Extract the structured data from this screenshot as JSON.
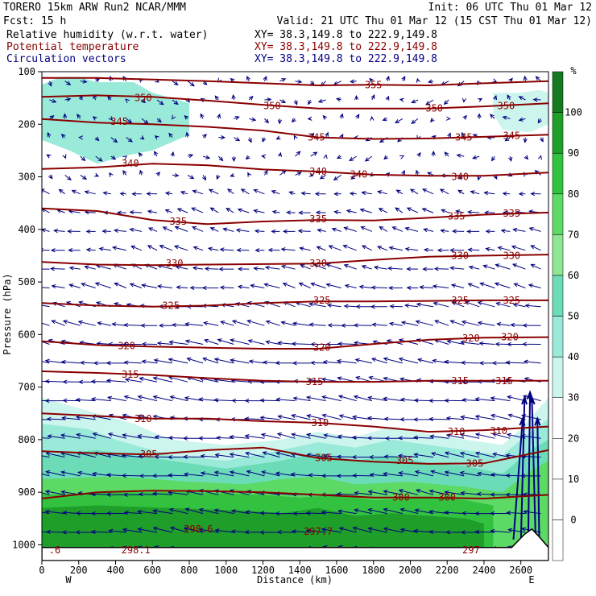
{
  "header": {
    "line1_left": "TORERO  15km ARW   Run2    NCAR/MMM",
    "line1_right": "Init: 06 UTC Thu 01 Mar 12",
    "line2_left": "Fcst:   15 h",
    "line2_right": "Valid: 21 UTC Thu 01 Mar 12 (15 CST Thu 01 Mar 12)",
    "fields": [
      {
        "label": "Relative humidity (w.r.t. water)",
        "xy": "XY=  38.3,149.8 to 222.9,149.8",
        "color": "#000000"
      },
      {
        "label": "Potential temperature",
        "xy": "XY=  38.3,149.8 to 222.9,149.8",
        "color": "#8b0000"
      },
      {
        "label": "Circulation vectors",
        "xy": "XY=  38.3,149.8 to 222.9,149.8",
        "color": "#000080"
      }
    ]
  },
  "colors": {
    "theta_contour": "#8b0000",
    "vectors": "#000080",
    "terrain": "#000000"
  },
  "chart_data": {
    "type": "heatmap",
    "title": "",
    "xlabel": "Distance (km)",
    "ylabel": "Pressure (hPa)",
    "x_end_left": "W",
    "x_end_right": "E",
    "xlim": [
      0,
      2750
    ],
    "ylim": [
      1030,
      100
    ],
    "y_axis_direction": "pressure decreasing upward",
    "x_ticks": [
      "0",
      "200",
      "400",
      "600",
      "800",
      "1000",
      "1200",
      "1400",
      "1600",
      "1800",
      "2000",
      "2200",
      "2400",
      "2600"
    ],
    "x_tick_values": [
      0,
      200,
      400,
      600,
      800,
      1000,
      1200,
      1400,
      1600,
      1800,
      2000,
      2200,
      2400,
      2600
    ],
    "y_ticks": [
      "100",
      "200",
      "300",
      "400",
      "500",
      "600",
      "700",
      "800",
      "900",
      "1000"
    ],
    "y_tick_values": [
      100,
      200,
      300,
      400,
      500,
      600,
      700,
      800,
      900,
      1000
    ],
    "colorbar": {
      "unit": "%",
      "tick_labels": [
        "0",
        "10",
        "20",
        "30",
        "40",
        "50",
        "60",
        "70",
        "80",
        "90",
        "100"
      ],
      "boundaries": [
        -10,
        0,
        10,
        20,
        30,
        40,
        50,
        60,
        70,
        80,
        90,
        100,
        110
      ],
      "colors": [
        "#ffffff",
        "#ffffff",
        "#ffffff",
        "#ffffff",
        "#ccf5ee",
        "#99ead9",
        "#6cdcb8",
        "#8fe693",
        "#5dd966",
        "#33c240",
        "#1f9e2a",
        "#157a1f"
      ]
    },
    "rh_regions": [
      {
        "rh": 45,
        "x": [
          0,
          100,
          200,
          300,
          500,
          600,
          800,
          800,
          600,
          450,
          300,
          150,
          0
        ],
        "p": [
          125,
          110,
          110,
          120,
          120,
          140,
          160,
          220,
          250,
          260,
          275,
          250,
          230
        ]
      },
      {
        "rh": 35,
        "x": [
          2450,
          2600,
          2700,
          2750,
          2750,
          2650,
          2500,
          2450
        ],
        "p": [
          140,
          140,
          135,
          140,
          200,
          215,
          210,
          180
        ]
      },
      {
        "rh": 35,
        "x": [
          0,
          200,
          400,
          500,
          700,
          1000,
          1300,
          1500,
          1700,
          1900,
          2100,
          2300,
          2500,
          2600,
          2750,
          2750,
          0
        ],
        "p": [
          720,
          740,
          760,
          770,
          800,
          810,
          800,
          785,
          795,
          775,
          790,
          800,
          810,
          780,
          720,
          1005,
          1005
        ]
      },
      {
        "rh": 45,
        "x": [
          0,
          250,
          400,
          700,
          1000,
          1300,
          1500,
          1700,
          1900,
          2100,
          2300,
          2500,
          2600,
          2750,
          2750,
          0
        ],
        "p": [
          770,
          780,
          800,
          830,
          840,
          820,
          805,
          815,
          800,
          810,
          820,
          830,
          800,
          760,
          1005,
          1005
        ]
      },
      {
        "rh": 55,
        "x": [
          0,
          300,
          700,
          1000,
          1300,
          1500,
          1700,
          1900,
          2100,
          2300,
          2500,
          2650,
          2750,
          2750,
          0
        ],
        "p": [
          830,
          820,
          840,
          855,
          840,
          825,
          840,
          830,
          845,
          850,
          865,
          820,
          800,
          1005,
          1005
        ]
      },
      {
        "rh": 75,
        "x": [
          0,
          400,
          800,
          1100,
          1300,
          1500,
          1700,
          2000,
          2300,
          2500,
          2650,
          2750,
          2750,
          0
        ],
        "p": [
          875,
          870,
          880,
          885,
          875,
          870,
          885,
          880,
          890,
          900,
          860,
          840,
          1005,
          1005
        ]
      },
      {
        "rh": 85,
        "x": [
          0,
          400,
          800,
          1200,
          1400,
          1600,
          1800,
          2100,
          2300,
          2450,
          2450,
          0
        ],
        "p": [
          905,
          900,
          900,
          905,
          910,
          905,
          915,
          910,
          915,
          925,
          1005,
          1005
        ]
      },
      {
        "rh": 95,
        "x": [
          0,
          300,
          700,
          1100,
          1300,
          1500,
          1700,
          1900,
          2100,
          2300,
          2400,
          2400,
          0
        ],
        "p": [
          930,
          925,
          930,
          935,
          940,
          930,
          945,
          940,
          945,
          950,
          960,
          1005,
          1005
        ]
      }
    ],
    "theta_contours": [
      {
        "label": "355",
        "label_at": [
          [
            1800,
            125
          ]
        ],
        "x": [
          0,
          300,
          600,
          900,
          1200,
          1500,
          1800,
          2100,
          2400,
          2750
        ],
        "p": [
          112,
          112,
          115,
          118,
          122,
          126,
          125,
          126,
          122,
          118
        ]
      },
      {
        "label": "350",
        "label_at": [
          [
            550,
            150
          ],
          [
            1250,
            165
          ],
          [
            2130,
            170
          ],
          [
            2520,
            165
          ]
        ],
        "x": [
          0,
          300,
          600,
          900,
          1200,
          1500,
          1800,
          2100,
          2400,
          2750
        ],
        "p": [
          148,
          145,
          148,
          155,
          163,
          170,
          170,
          170,
          166,
          160
        ]
      },
      {
        "label": "345",
        "label_at": [
          [
            420,
            195
          ],
          [
            1490,
            225
          ],
          [
            2290,
            225
          ],
          [
            2550,
            222
          ]
        ],
        "x": [
          0,
          300,
          600,
          900,
          1200,
          1500,
          1800,
          2100,
          2400,
          2750
        ],
        "p": [
          190,
          197,
          200,
          205,
          212,
          225,
          228,
          227,
          224,
          220
        ]
      },
      {
        "label": "340",
        "label_at": [
          [
            480,
            275
          ],
          [
            1500,
            290
          ],
          [
            1720,
            295
          ],
          [
            2270,
            300
          ]
        ],
        "x": [
          0,
          300,
          600,
          900,
          1200,
          1500,
          1800,
          2100,
          2400,
          2750
        ],
        "p": [
          285,
          282,
          275,
          278,
          286,
          290,
          296,
          298,
          298,
          292
        ]
      },
      {
        "label": "335",
        "label_at": [
          [
            740,
            385
          ],
          [
            1500,
            380
          ],
          [
            2250,
            375
          ],
          [
            2550,
            370
          ]
        ],
        "x": [
          0,
          300,
          600,
          900,
          1200,
          1500,
          1800,
          2100,
          2400,
          2750
        ],
        "p": [
          360,
          365,
          382,
          390,
          385,
          382,
          383,
          378,
          372,
          368
        ]
      },
      {
        "label": "330",
        "label_at": [
          [
            720,
            465
          ],
          [
            1500,
            465
          ],
          [
            2270,
            450
          ],
          [
            2550,
            450
          ]
        ],
        "x": [
          0,
          300,
          600,
          900,
          1200,
          1500,
          1800,
          2100,
          2400,
          2750
        ],
        "p": [
          462,
          467,
          468,
          467,
          466,
          465,
          458,
          452,
          450,
          448
        ]
      },
      {
        "label": "325",
        "label_at": [
          [
            700,
            545
          ],
          [
            1520,
            535
          ],
          [
            2270,
            535
          ],
          [
            2550,
            535
          ]
        ],
        "x": [
          0,
          300,
          600,
          900,
          1200,
          1500,
          1800,
          2100,
          2400,
          2750
        ],
        "p": [
          540,
          545,
          547,
          545,
          540,
          537,
          537,
          536,
          535,
          535
        ]
      },
      {
        "label": "320",
        "label_at": [
          [
            460,
            622
          ],
          [
            1520,
            625
          ],
          [
            2330,
            607
          ],
          [
            2540,
            605
          ]
        ],
        "x": [
          0,
          300,
          600,
          900,
          1200,
          1500,
          1800,
          2100,
          2400,
          2750
        ],
        "p": [
          613,
          620,
          623,
          625,
          627,
          627,
          618,
          610,
          606,
          605
        ]
      },
      {
        "label": "315",
        "label_at": [
          [
            480,
            676
          ],
          [
            1480,
            690
          ],
          [
            2270,
            688
          ],
          [
            2510,
            688
          ]
        ],
        "x": [
          0,
          300,
          600,
          900,
          1200,
          1500,
          1800,
          2100,
          2400,
          2750
        ],
        "p": [
          670,
          673,
          677,
          683,
          688,
          690,
          690,
          688,
          688,
          688
        ]
      },
      {
        "label": "310",
        "label_at": [
          [
            550,
            760
          ],
          [
            1510,
            768
          ],
          [
            2250,
            785
          ],
          [
            2480,
            783
          ]
        ],
        "x": [
          0,
          300,
          600,
          900,
          1200,
          1500,
          1800,
          2100,
          2400,
          2750
        ],
        "p": [
          750,
          755,
          760,
          760,
          765,
          768,
          775,
          785,
          782,
          775
        ]
      },
      {
        "label": "305",
        "label_at": [
          [
            580,
            828
          ],
          [
            1530,
            835
          ],
          [
            1970,
            840
          ],
          [
            2350,
            845
          ]
        ],
        "x": [
          0,
          300,
          600,
          900,
          1200,
          1500,
          1800,
          2100,
          2400,
          2750
        ],
        "p": [
          822,
          826,
          828,
          820,
          815,
          835,
          842,
          846,
          845,
          820
        ]
      },
      {
        "label": "300",
        "label_at": [
          [
            1950,
            910
          ],
          [
            2200,
            910
          ]
        ],
        "x": [
          0,
          300,
          600,
          900,
          1200,
          1500,
          1800,
          2100,
          2400,
          2750
        ],
        "p": [
          912,
          900,
          897,
          898,
          900,
          905,
          910,
          910,
          912,
          905
        ]
      },
      {
        "label": "298.6",
        "label_at": [
          [
            850,
            970
          ]
        ],
        "x": [],
        "p": []
      },
      {
        "label": "298.1",
        "label_at": [
          [
            510,
            1010
          ]
        ],
        "x": [],
        "p": []
      },
      {
        "label": "297.7",
        "label_at": [
          [
            1500,
            975
          ]
        ],
        "x": [],
        "p": []
      },
      {
        "label": "297",
        "label_at": [
          [
            2330,
            1010
          ]
        ],
        "x": [],
        "p": []
      },
      {
        "label": ".6",
        "label_at": [
          [
            70,
            1010
          ]
        ],
        "x": [],
        "p": []
      }
    ],
    "terrain": {
      "x": [
        0,
        2450,
        2550,
        2620,
        2660,
        2700,
        2750
      ],
      "p": [
        1005,
        1005,
        1005,
        980,
        970,
        985,
        1005
      ]
    },
    "vectors": {
      "columns": 33,
      "rows": 26,
      "flow": "westward (right-to-left) at most levels with strong upward motion near x=2600-2700 km"
    }
  }
}
